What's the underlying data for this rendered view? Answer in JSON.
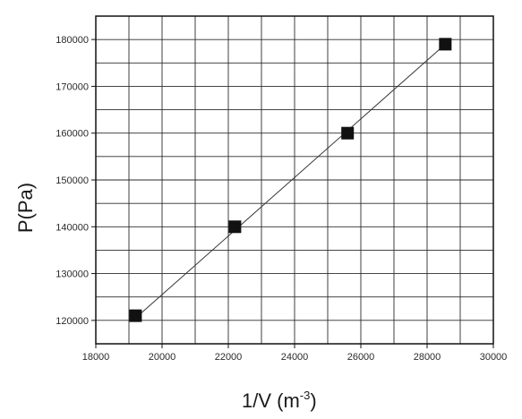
{
  "chart_data": {
    "type": "scatter",
    "xlabel": "1/V (m",
    "xlabel_exponent": "-3",
    "xlabel_close": ")",
    "ylabel": "P(Pa)",
    "xlim": [
      18000,
      30000
    ],
    "ylim": [
      115000,
      185000
    ],
    "x_ticks": [
      18000,
      20000,
      22000,
      24000,
      26000,
      28000,
      30000
    ],
    "y_ticks": [
      120000,
      130000,
      140000,
      150000,
      160000,
      170000,
      180000
    ],
    "grid": true,
    "legend": "none",
    "fit_line": {
      "x": [
        19200,
        28550
      ],
      "y": [
        120500,
        179000
      ]
    },
    "series": [
      {
        "x": [
          19200,
          22200,
          25600,
          28550
        ],
        "y": [
          121000,
          140000,
          160000,
          179000
        ],
        "marker": "square",
        "color": "#111111"
      }
    ]
  }
}
